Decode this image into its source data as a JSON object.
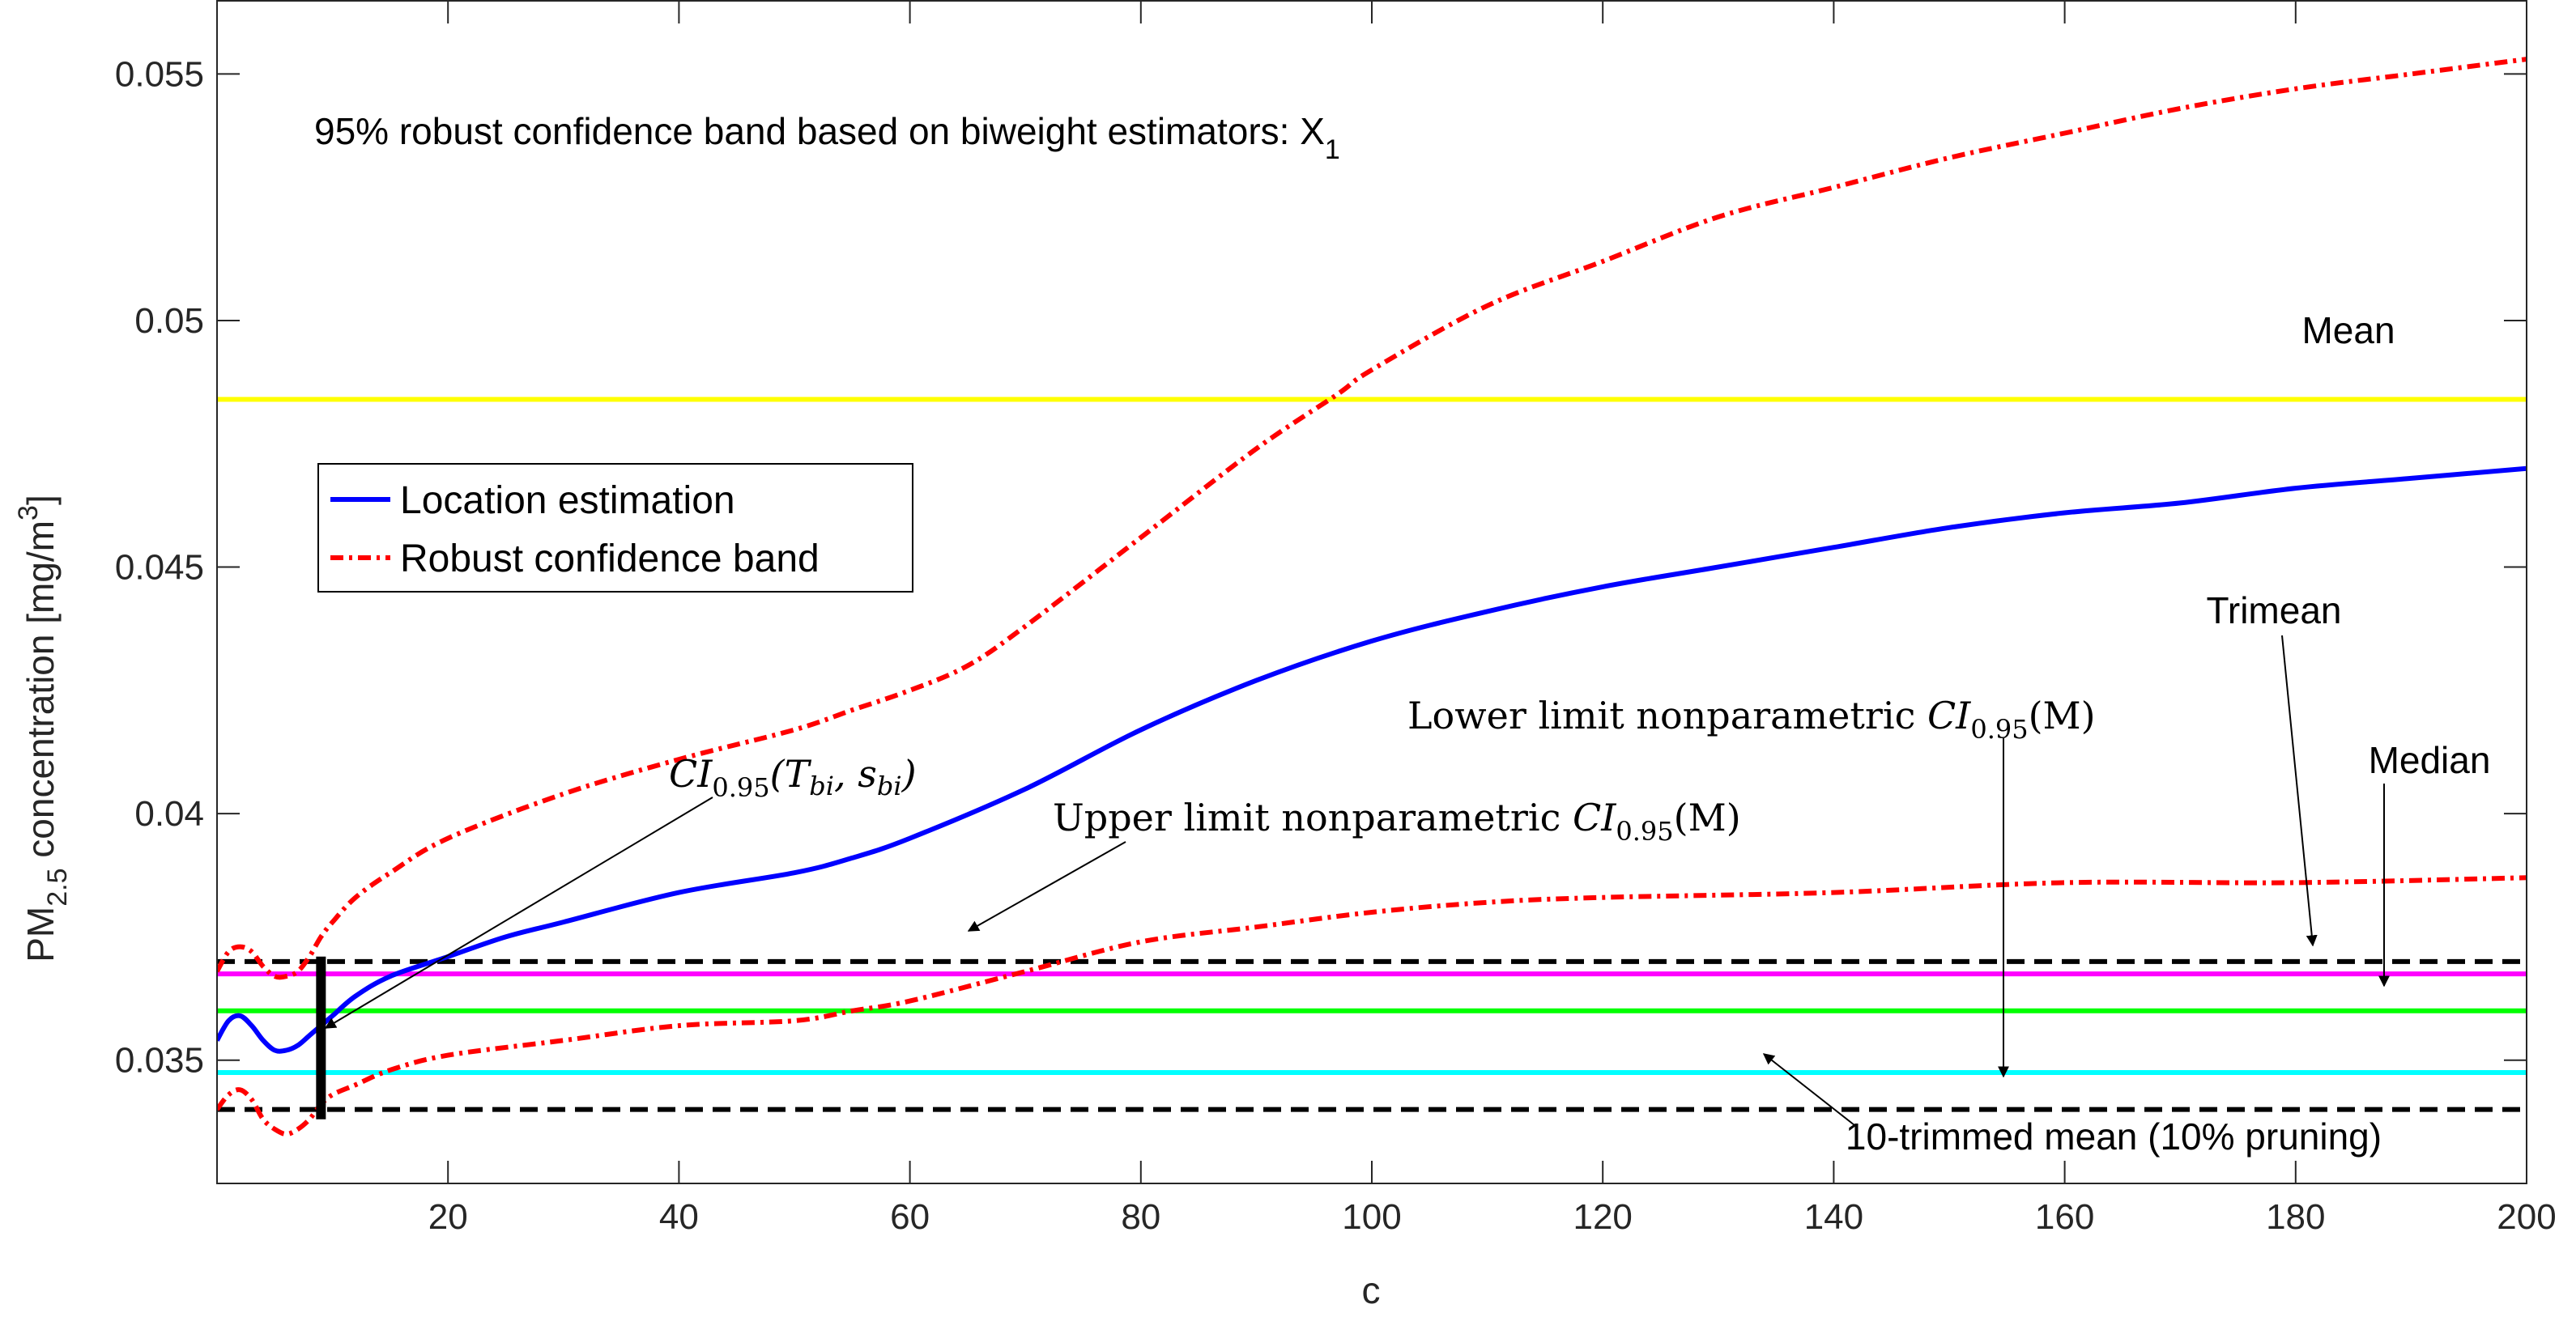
{
  "chart_data": {
    "type": "line",
    "title": "95% robust confidence band based on biweight estimators: X",
    "title_subscript": "1",
    "xlabel": "c",
    "ylabel": {
      "prefix": "PM",
      "subscript": "2.5",
      "middle": " concentration [mg/m",
      "superscript": "3",
      "suffix": "]"
    },
    "xlim": [
      0,
      200
    ],
    "ylim": [
      0.0325,
      0.0565
    ],
    "xticks": [
      20,
      40,
      60,
      80,
      100,
      120,
      140,
      160,
      180,
      200
    ],
    "xtick_labels": [
      "20",
      "40",
      "60",
      "80",
      "100",
      "120",
      "140",
      "160",
      "180",
      "200"
    ],
    "yticks": [
      0.035,
      0.04,
      0.045,
      0.05,
      0.055
    ],
    "ytick_labels": [
      "0.035",
      "0.04",
      "0.045",
      "0.05",
      "0.055"
    ],
    "grid": false,
    "legend": {
      "position": "center-left",
      "entries": [
        "Location estimation",
        "Robust confidence band"
      ]
    },
    "series": [
      {
        "name": "Location estimation",
        "style": "solid",
        "color": "#0000ff",
        "x": [
          0,
          1,
          2,
          3,
          4,
          5,
          6,
          7,
          8,
          9,
          10,
          12,
          15,
          20,
          25,
          30,
          40,
          50,
          55,
          60,
          70,
          80,
          90,
          100,
          110,
          120,
          130,
          140,
          150,
          160,
          170,
          180,
          190,
          200
        ],
        "y": [
          0.0354,
          0.0358,
          0.0359,
          0.0357,
          0.0354,
          0.0352,
          0.0352,
          0.0353,
          0.0355,
          0.0357,
          0.0359,
          0.0363,
          0.0367,
          0.0371,
          0.0375,
          0.0378,
          0.0384,
          0.0388,
          0.0391,
          0.0395,
          0.0405,
          0.0417,
          0.0427,
          0.0435,
          0.0441,
          0.0446,
          0.045,
          0.0454,
          0.0458,
          0.0461,
          0.0463,
          0.0466,
          0.0468,
          0.047
        ]
      },
      {
        "name": "Robust confidence band (upper)",
        "style": "dashdot",
        "color": "#ff0000",
        "x": [
          0,
          1,
          2,
          3,
          4,
          5,
          6,
          7,
          8,
          9,
          10,
          12,
          15,
          20,
          30,
          40,
          50,
          55,
          60,
          65,
          70,
          80,
          90,
          97,
          100,
          110,
          120,
          130,
          140,
          150,
          160,
          170,
          180,
          190,
          200
        ],
        "y": [
          0.0368,
          0.0372,
          0.0373,
          0.0372,
          0.0369,
          0.0367,
          0.0367,
          0.0368,
          0.0371,
          0.0375,
          0.0378,
          0.0383,
          0.0388,
          0.0395,
          0.0404,
          0.0411,
          0.0417,
          0.0421,
          0.0425,
          0.043,
          0.0438,
          0.0456,
          0.0474,
          0.0485,
          0.049,
          0.0503,
          0.0512,
          0.0521,
          0.0527,
          0.0533,
          0.0538,
          0.0543,
          0.0547,
          0.055,
          0.0553
        ]
      },
      {
        "name": "Robust confidence band (lower)",
        "style": "dashdot",
        "color": "#ff0000",
        "x": [
          0,
          1,
          2,
          3,
          4,
          5,
          6,
          7,
          8,
          9,
          10,
          12,
          15,
          20,
          30,
          40,
          50,
          55,
          60,
          70,
          80,
          90,
          100,
          110,
          120,
          140,
          160,
          180,
          200
        ],
        "y": [
          0.034,
          0.0343,
          0.0344,
          0.0342,
          0.0338,
          0.0336,
          0.0335,
          0.0336,
          0.0338,
          0.0341,
          0.0343,
          0.0345,
          0.0348,
          0.0351,
          0.0354,
          0.0357,
          0.0358,
          0.036,
          0.0362,
          0.0368,
          0.0374,
          0.0377,
          0.038,
          0.0382,
          0.0383,
          0.0384,
          0.0386,
          0.0386,
          0.0387
        ]
      }
    ],
    "reference_lines": [
      {
        "name": "Mean",
        "y": 0.0484,
        "color": "#ffff00",
        "style": "solid"
      },
      {
        "name": "Trimean",
        "y": 0.03675,
        "color": "#ff00ff",
        "style": "solid"
      },
      {
        "name": "Median",
        "y": 0.036,
        "color": "#00ff00",
        "style": "solid"
      },
      {
        "name": "10-trimmed mean (10% pruning)",
        "y": 0.03475,
        "color": "#00ffff",
        "style": "solid"
      },
      {
        "name": "Upper limit nonparametric CI0.95(M)",
        "y": 0.037,
        "color": "#000000",
        "style": "dashed"
      },
      {
        "name": "Lower limit nonparametric CI0.95(M)",
        "y": 0.034,
        "color": "#000000",
        "style": "dashed"
      }
    ],
    "ci_bar": {
      "x": 9,
      "ymin": 0.0338,
      "ymax": 0.0371,
      "label": "CI0.95(Tbi, sbi)"
    },
    "annotations": {
      "mean": "Mean",
      "trimean": "Trimean",
      "median": "Median",
      "trimmed": "10-trimmed mean (10% pruning)",
      "upper_ci": {
        "pre": "Upper limit nonparametric ",
        "ci": "CI",
        "sub": "0.95",
        "arg": "(M)"
      },
      "lower_ci": {
        "pre": "Lower limit nonparametric ",
        "ci": "CI",
        "sub": "0.95",
        "arg": "(M)"
      },
      "ci_bar": {
        "ci": "CI",
        "sub": "0.95",
        "arg_open": "(T",
        "t_sub": "bi",
        "comma": ", s",
        "s_sub": "bi",
        "close": ")"
      }
    }
  }
}
